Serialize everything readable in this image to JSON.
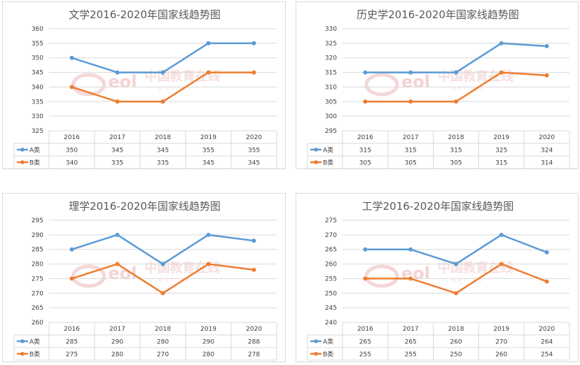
{
  "colors": {
    "series_a": "#5b9bd5",
    "series_b": "#ed7d31",
    "grid": "#d9d9d9",
    "watermark": "#f2c9c9"
  },
  "watermark": {
    "logo": "eol",
    "text": "中国教育在线",
    "sub": "eol.cn"
  },
  "chart_data": [
    {
      "type": "line",
      "title": "文学2016-2020年国家线趋势图",
      "categories": [
        "2016",
        "2017",
        "2018",
        "2019",
        "2020"
      ],
      "ylim": [
        325,
        360
      ],
      "yticks": [
        "325",
        "330",
        "335",
        "340",
        "345",
        "350",
        "355",
        "360"
      ],
      "grid": true,
      "legend": "data-table",
      "series": [
        {
          "name": "A类",
          "values": [
            350,
            345,
            345,
            355,
            355
          ]
        },
        {
          "name": "B类",
          "values": [
            340,
            335,
            335,
            345,
            345
          ]
        }
      ]
    },
    {
      "type": "line",
      "title": "历史学2016-2020年国家线趋势图",
      "categories": [
        "2016",
        "2017",
        "2018",
        "2019",
        "2020"
      ],
      "ylim": [
        295,
        330
      ],
      "yticks": [
        "295",
        "300",
        "305",
        "310",
        "315",
        "320",
        "325",
        "330"
      ],
      "grid": true,
      "legend": "data-table",
      "series": [
        {
          "name": "A类",
          "values": [
            315,
            315,
            315,
            325,
            324
          ]
        },
        {
          "name": "B类",
          "values": [
            305,
            305,
            305,
            315,
            314
          ]
        }
      ]
    },
    {
      "type": "line",
      "title": "理学2016-2020年国家线趋势图",
      "categories": [
        "2016",
        "2017",
        "2018",
        "2019",
        "2020"
      ],
      "ylim": [
        260,
        295
      ],
      "yticks": [
        "260",
        "265",
        "270",
        "275",
        "280",
        "285",
        "290",
        "295"
      ],
      "grid": true,
      "legend": "data-table",
      "series": [
        {
          "name": "A类",
          "values": [
            285,
            290,
            280,
            290,
            288
          ]
        },
        {
          "name": "B类",
          "values": [
            275,
            280,
            270,
            280,
            278
          ]
        }
      ]
    },
    {
      "type": "line",
      "title": "工学2016-2020年国家线趋势图",
      "categories": [
        "2016",
        "2017",
        "2018",
        "2019",
        "2020"
      ],
      "ylim": [
        240,
        275
      ],
      "yticks": [
        "240",
        "245",
        "250",
        "255",
        "260",
        "265",
        "270",
        "275"
      ],
      "grid": true,
      "legend": "data-table",
      "series": [
        {
          "name": "A类",
          "values": [
            265,
            265,
            260,
            270,
            264
          ]
        },
        {
          "name": "B类",
          "values": [
            255,
            255,
            250,
            260,
            254
          ]
        }
      ]
    }
  ]
}
